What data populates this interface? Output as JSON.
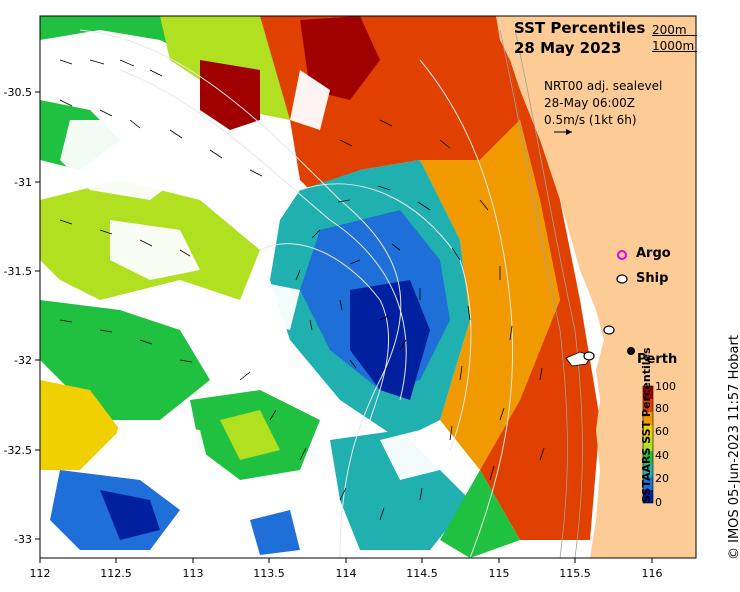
{
  "title": {
    "line1": "SST Percentiles",
    "line2": "28 May 2023"
  },
  "contour_key": {
    "a": "200m",
    "b": "1000m"
  },
  "info": {
    "line1": "NRT00 adj. sealevel",
    "line2": "28-May 06:00Z",
    "line3": "0.5m/s (1kt 6h)"
  },
  "legend": {
    "argo": "Argo",
    "ship": "Ship",
    "city": "Perth"
  },
  "colorbar": {
    "label": "SSTAARS SST Percentiles",
    "ticks": [
      "100",
      "80",
      "60",
      "40",
      "20",
      "0"
    ],
    "colors": [
      "#a00000",
      "#e04000",
      "#f09a00",
      "#f0d000",
      "#b0e020",
      "#20c040",
      "#20b0b0",
      "#1f6fd8",
      "#0020a0"
    ]
  },
  "credit": "© IMOS 05-Jun-2023 11:57 Hobart",
  "axes": {
    "x_ticks": [
      "112",
      "112.5",
      "113",
      "113.5",
      "114",
      "114.5",
      "115",
      "115.5",
      "116"
    ],
    "y_ticks": [
      "-30.5",
      "-31",
      "-31.5",
      "-32",
      "-32.5",
      "-33"
    ]
  },
  "colors": {
    "land": "#fdcb95",
    "water_missing": "#ffffff"
  }
}
